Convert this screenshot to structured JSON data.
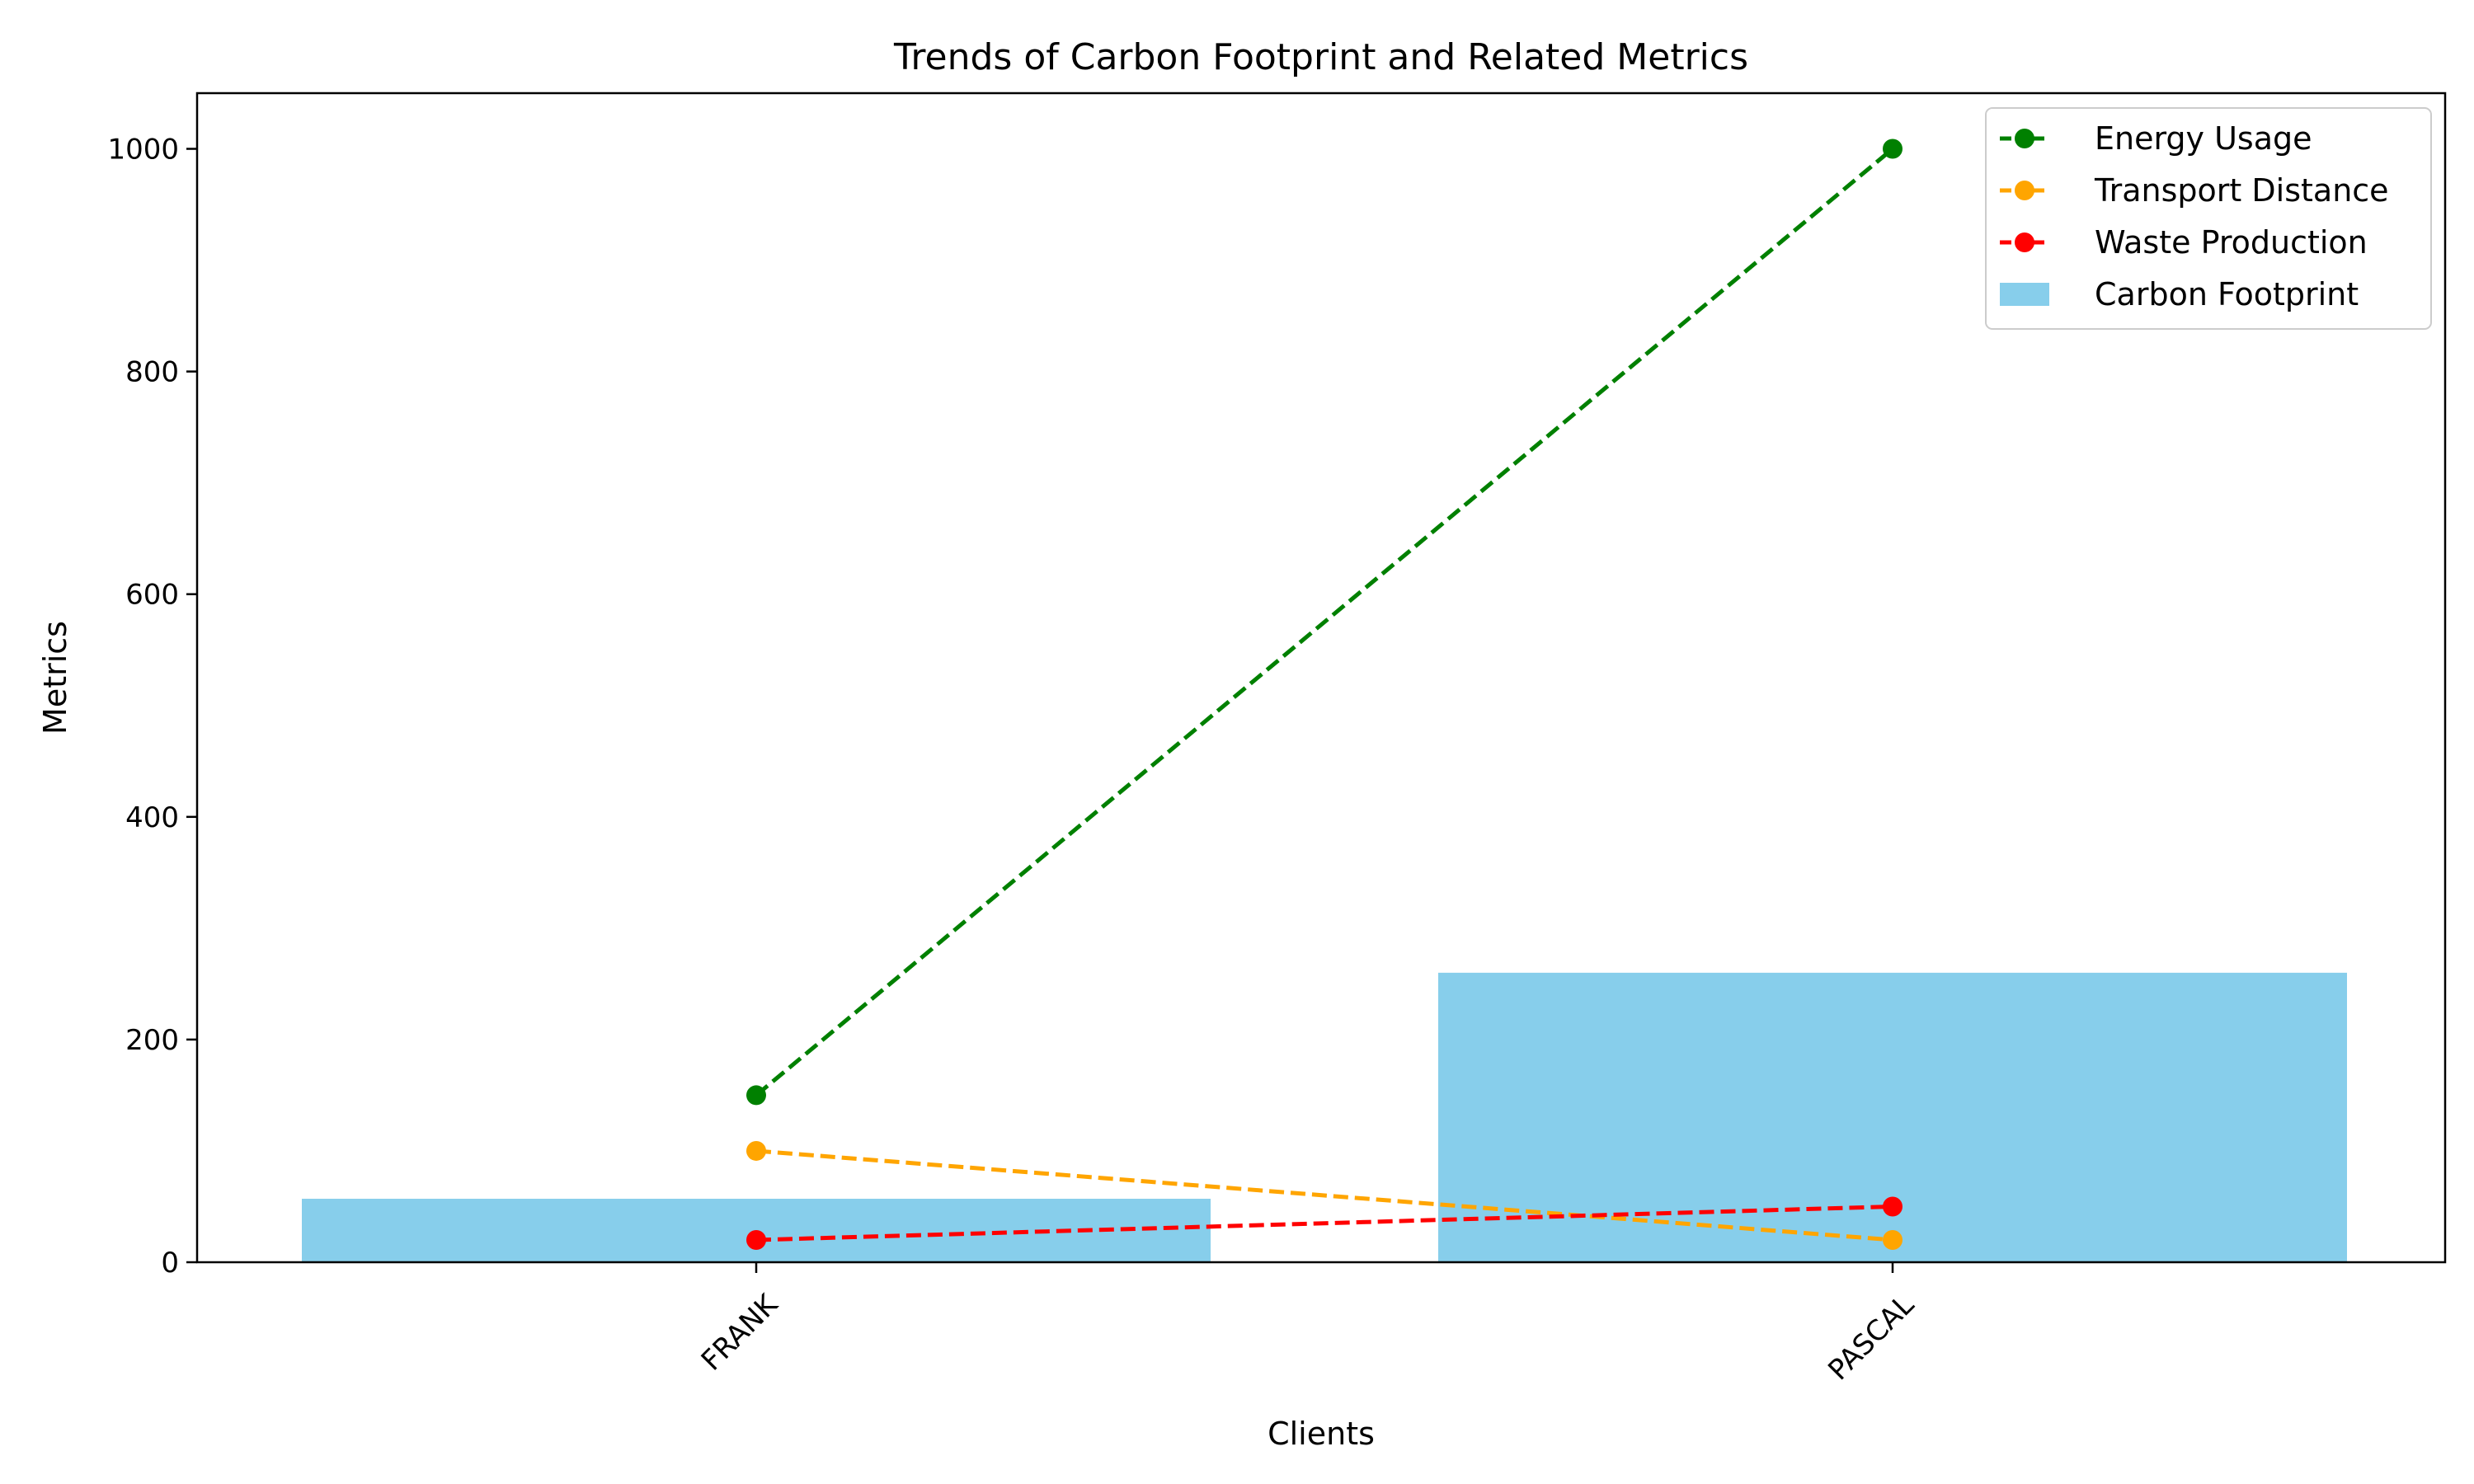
{
  "chart_data": {
    "type": "bar+line",
    "title": "Trends of Carbon Footprint and Related Metrics",
    "xlabel": "Clients",
    "ylabel": "Metrics",
    "categories": [
      "FRANK",
      "PASCAL"
    ],
    "ylim": [
      0,
      1050
    ],
    "yticks": [
      0,
      200,
      400,
      600,
      800,
      1000
    ],
    "grid": false,
    "legend_position": "top-right",
    "series": [
      {
        "name": "Energy Usage",
        "kind": "line",
        "style": "dashed",
        "marker": "circle",
        "color": "#008000",
        "values": [
          150,
          1000
        ]
      },
      {
        "name": "Transport Distance",
        "kind": "line",
        "style": "dashed",
        "marker": "circle",
        "color": "#FFA500",
        "values": [
          100,
          20
        ]
      },
      {
        "name": "Waste Production",
        "kind": "line",
        "style": "dashed",
        "marker": "circle",
        "color": "#FF0000",
        "values": [
          20,
          50
        ]
      },
      {
        "name": "Carbon Footprint",
        "kind": "bar",
        "color": "#87CEEB",
        "values": [
          57,
          260
        ]
      }
    ]
  }
}
